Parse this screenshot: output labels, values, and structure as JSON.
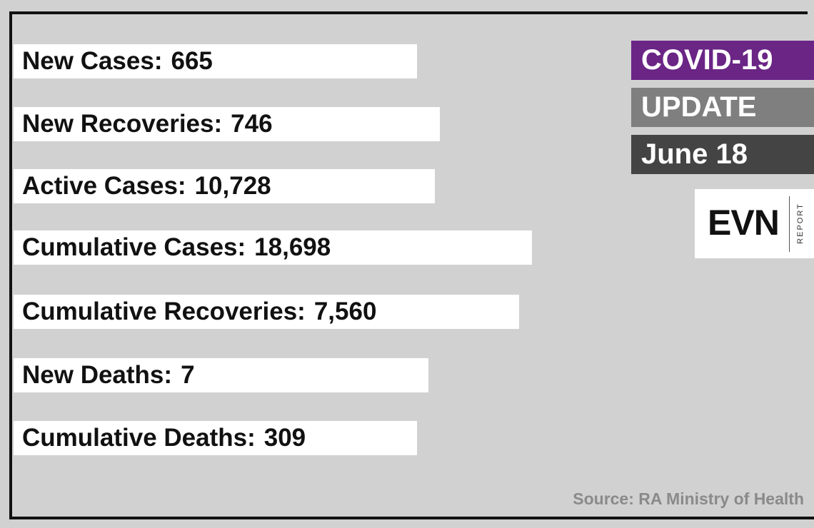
{
  "items": [
    {
      "label": "New Cases:",
      "value": "665"
    },
    {
      "label": "New Recoveries:",
      "value": "746"
    },
    {
      "label": "Active Cases:",
      "value": "10,728"
    },
    {
      "label": "Cumulative Cases:",
      "value": "18,698"
    },
    {
      "label": "Cumulative Recoveries:",
      "value": "7,560"
    },
    {
      "label": "New Deaths:",
      "value": "7"
    },
    {
      "label": "Cumulative Deaths:",
      "value": "309"
    }
  ],
  "badge": {
    "line1": "COVID-19",
    "line2": "UPDATE",
    "date": "June 18"
  },
  "logo": {
    "name": "EVN",
    "sub": "REPORT"
  },
  "source": "Source: RA Ministry of Health"
}
